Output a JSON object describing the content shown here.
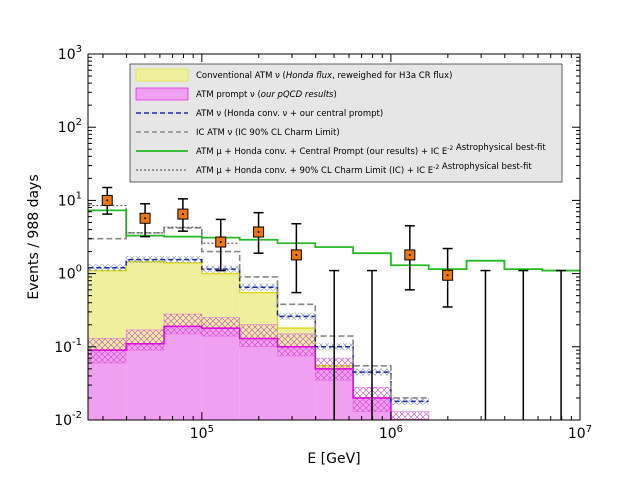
{
  "chart_data": {
    "type": "step-histogram",
    "title": "",
    "xlabel": "E [GeV]",
    "ylabel": "Events / 988 days",
    "x_scale": "log",
    "y_scale": "log",
    "xlim": [
      25000,
      10000000
    ],
    "ylim": [
      0.01,
      1000
    ],
    "grid": false,
    "legend_position": "top-right",
    "x_ticks": [
      {
        "base": "10",
        "exp": "5",
        "value": 100000
      },
      {
        "base": "10",
        "exp": "6",
        "value": 1000000
      },
      {
        "base": "10",
        "exp": "7",
        "value": 10000000
      }
    ],
    "y_ticks": [
      {
        "base": "10",
        "exp": "-2",
        "value": 0.01
      },
      {
        "base": "10",
        "exp": "-1",
        "value": 0.1
      },
      {
        "base": "10",
        "exp": "0",
        "value": 1
      },
      {
        "base": "10",
        "exp": "1",
        "value": 10
      },
      {
        "base": "10",
        "exp": "2",
        "value": 100
      },
      {
        "base": "10",
        "exp": "3",
        "value": 1000
      }
    ],
    "bin_edges": [
      25100,
      39800,
      63100,
      100000,
      158500,
      251200,
      398100,
      631000,
      1000000,
      1585000,
      2512000,
      3981000,
      6310000,
      10000000
    ],
    "series": [
      {
        "name": "Conventional ATM ν (Honda flux, reweighed for H3a CR flux)",
        "style": "fill",
        "color": "#f0ef9e",
        "edge": "#e0dc1c",
        "values": [
          1.1,
          1.45,
          1.4,
          1.0,
          0.55,
          0.18,
          0.055,
          0.02,
          0.008,
          0.0,
          0.0,
          0.0,
          0.0
        ]
      },
      {
        "name": "ATM prompt ν (our pQCD results)",
        "style": "fill",
        "color": "#f0a0f0",
        "edge": "#e000e0",
        "values": [
          0.09,
          0.11,
          0.19,
          0.18,
          0.13,
          0.1,
          0.05,
          0.02,
          0.009,
          0.0,
          0.0,
          0.0,
          0.0
        ],
        "band_low": [
          0.06,
          0.09,
          0.15,
          0.14,
          0.1,
          0.075,
          0.035,
          0.013,
          0.006,
          0.0,
          0.0,
          0.0,
          0.0
        ],
        "band_high": [
          0.13,
          0.17,
          0.28,
          0.25,
          0.2,
          0.15,
          0.07,
          0.028,
          0.013,
          0.0,
          0.0,
          0.0,
          0.0
        ]
      },
      {
        "name": "ATM ν (Honda conv. ν + our central prompt)",
        "style": "dashed",
        "color": "#1a2aa0",
        "values": [
          1.2,
          1.55,
          1.55,
          1.15,
          0.65,
          0.26,
          0.1,
          0.045,
          0.018,
          0.0,
          0.0,
          0.0,
          0.0
        ]
      },
      {
        "name": "IC ATM ν (IC 90% CL Charm Limit)",
        "style": "dashed",
        "color": "#888888",
        "values": [
          3.0,
          3.6,
          4.2,
          2.0,
          0.9,
          0.38,
          0.14,
          0.055,
          0.02,
          0.0,
          0.0,
          0.0,
          0.0
        ]
      },
      {
        "name": "ATM μ + Honda conv. + Central Prompt (our results) + IC E^-2 Astrophysical best-fit",
        "style": "solid",
        "color": "#22bb22",
        "values": [
          7.3,
          3.3,
          3.2,
          3.1,
          2.9,
          2.6,
          2.3,
          1.9,
          1.3,
          1.15,
          1.5,
          1.15,
          1.1
        ]
      },
      {
        "name": "ATM μ + Honda conv. + 90% CL Charm Limit (IC) + IC E^-2 Astrophysical best-fit",
        "style": "dotted",
        "color": "#666666",
        "values": [
          8.5,
          3.6,
          4.3,
          2.6,
          0.0,
          0.0,
          0.0,
          0.0,
          0.0,
          0.0,
          0.0,
          0.0,
          0.0
        ]
      }
    ],
    "data_points": [
      {
        "x": 31600,
        "y": 10.0,
        "y_low": 6.5,
        "y_high": 15.0
      },
      {
        "x": 50100,
        "y": 5.7,
        "y_low": 3.2,
        "y_high": 9.0
      },
      {
        "x": 79400,
        "y": 6.5,
        "y_low": 3.8,
        "y_high": 10.5
      },
      {
        "x": 125900,
        "y": 2.7,
        "y_low": 1.1,
        "y_high": 5.5
      },
      {
        "x": 199500,
        "y": 3.7,
        "y_low": 1.9,
        "y_high": 6.8
      },
      {
        "x": 316200,
        "y": 1.8,
        "y_low": 0.55,
        "y_high": 4.8
      },
      {
        "x": 501200,
        "y": null,
        "y_low": 0.01,
        "y_high": 1.1
      },
      {
        "x": 794300,
        "y": null,
        "y_low": 0.01,
        "y_high": 1.1
      },
      {
        "x": 1259000,
        "y": 1.8,
        "y_low": 0.6,
        "y_high": 4.5
      },
      {
        "x": 1995000,
        "y": 0.95,
        "y_low": 0.35,
        "y_high": 2.2
      },
      {
        "x": 3162000,
        "y": null,
        "y_low": 0.01,
        "y_high": 1.1
      },
      {
        "x": 5012000,
        "y": null,
        "y_low": 0.01,
        "y_high": 1.1
      },
      {
        "x": 7943000,
        "y": null,
        "y_low": 0.01,
        "y_high": 1.1
      }
    ],
    "legend": [
      {
        "id": "conv",
        "parts": [
          {
            "t": "Conventional ATM ν ("
          },
          {
            "t": "Honda flux",
            "i": true
          },
          {
            "t": ", reweighed for H3a CR flux)"
          }
        ]
      },
      {
        "id": "prompt",
        "parts": [
          {
            "t": "ATM prompt ν ("
          },
          {
            "t": "our pQCD results",
            "i": true
          },
          {
            "t": ")"
          }
        ]
      },
      {
        "id": "atmnu",
        "parts": [
          {
            "t": "ATM ν (Honda conv. ν + our central prompt)"
          }
        ]
      },
      {
        "id": "icatm",
        "parts": [
          {
            "t": "IC ATM ν (IC 90% CL Charm Limit)"
          }
        ]
      },
      {
        "id": "total",
        "parts": [
          {
            "t": "ATM μ + Honda conv. + Central Prompt (our results) + IC E"
          },
          {
            "t": "-2",
            "s": true
          },
          {
            "t": " Astrophysical best-fit"
          }
        ]
      },
      {
        "id": "totalic",
        "parts": [
          {
            "t": "ATM μ + Honda conv. + 90% CL Charm Limit (IC) + IC E"
          },
          {
            "t": "-2",
            "s": true
          },
          {
            "t": " Astrophysical best-fit"
          }
        ]
      }
    ]
  }
}
